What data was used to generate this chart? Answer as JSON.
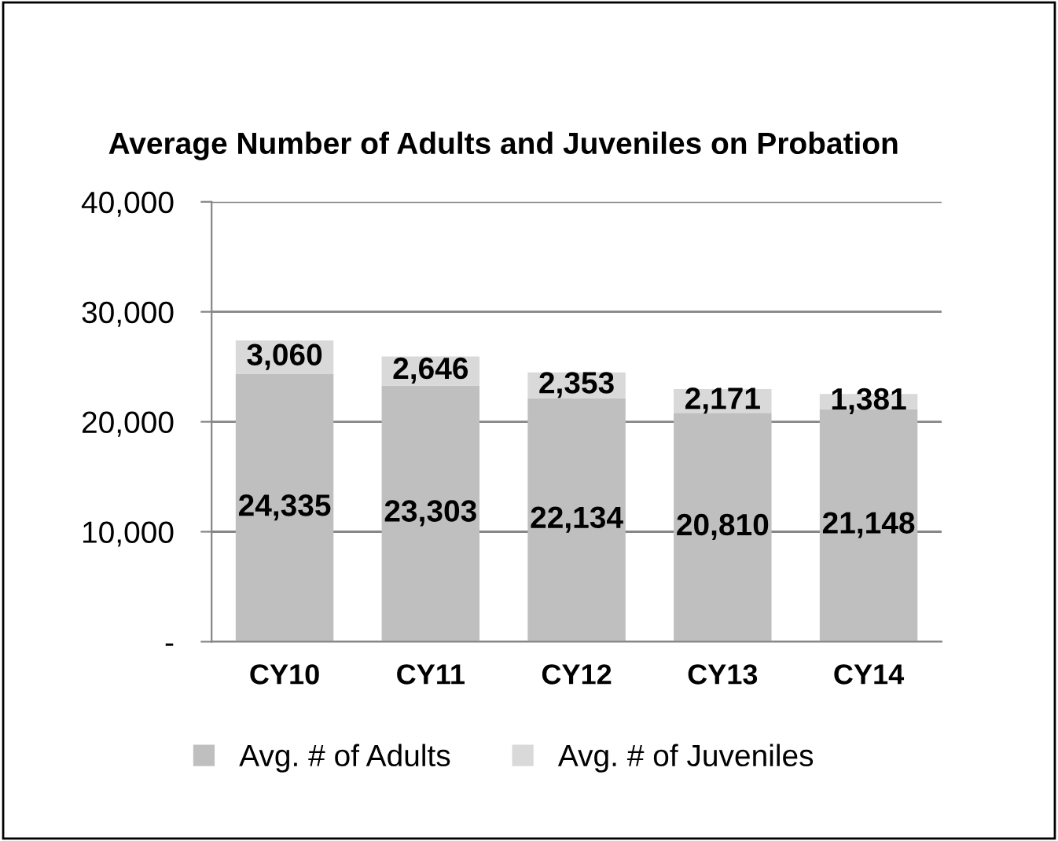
{
  "chart_data": {
    "type": "bar",
    "stacked": true,
    "title": "Average Number of Adults and Juveniles on Probation",
    "categories": [
      "CY10",
      "CY11",
      "CY12",
      "CY13",
      "CY14"
    ],
    "series": [
      {
        "name": "Avg. # of Adults",
        "color": "#bfbfbf",
        "values": [
          24335,
          23303,
          22134,
          20810,
          21148
        ],
        "value_labels": [
          "24,335",
          "23,303",
          "22,134",
          "20,810",
          "21,148"
        ]
      },
      {
        "name": "Avg. # of Juveniles",
        "color": "#d9d9d9",
        "values": [
          3060,
          2646,
          2353,
          2171,
          1381
        ],
        "value_labels": [
          "3,060",
          "2,646",
          "2,353",
          "2,171",
          "1,381"
        ]
      }
    ],
    "ylim": [
      0,
      40000
    ],
    "yticks": [
      {
        "value": 0,
        "label": "-"
      },
      {
        "value": 10000,
        "label": "10,000"
      },
      {
        "value": 20000,
        "label": "20,000"
      },
      {
        "value": 30000,
        "label": "30,000"
      },
      {
        "value": 40000,
        "label": "40,000"
      }
    ],
    "grid": "y",
    "legend": "bottom"
  }
}
